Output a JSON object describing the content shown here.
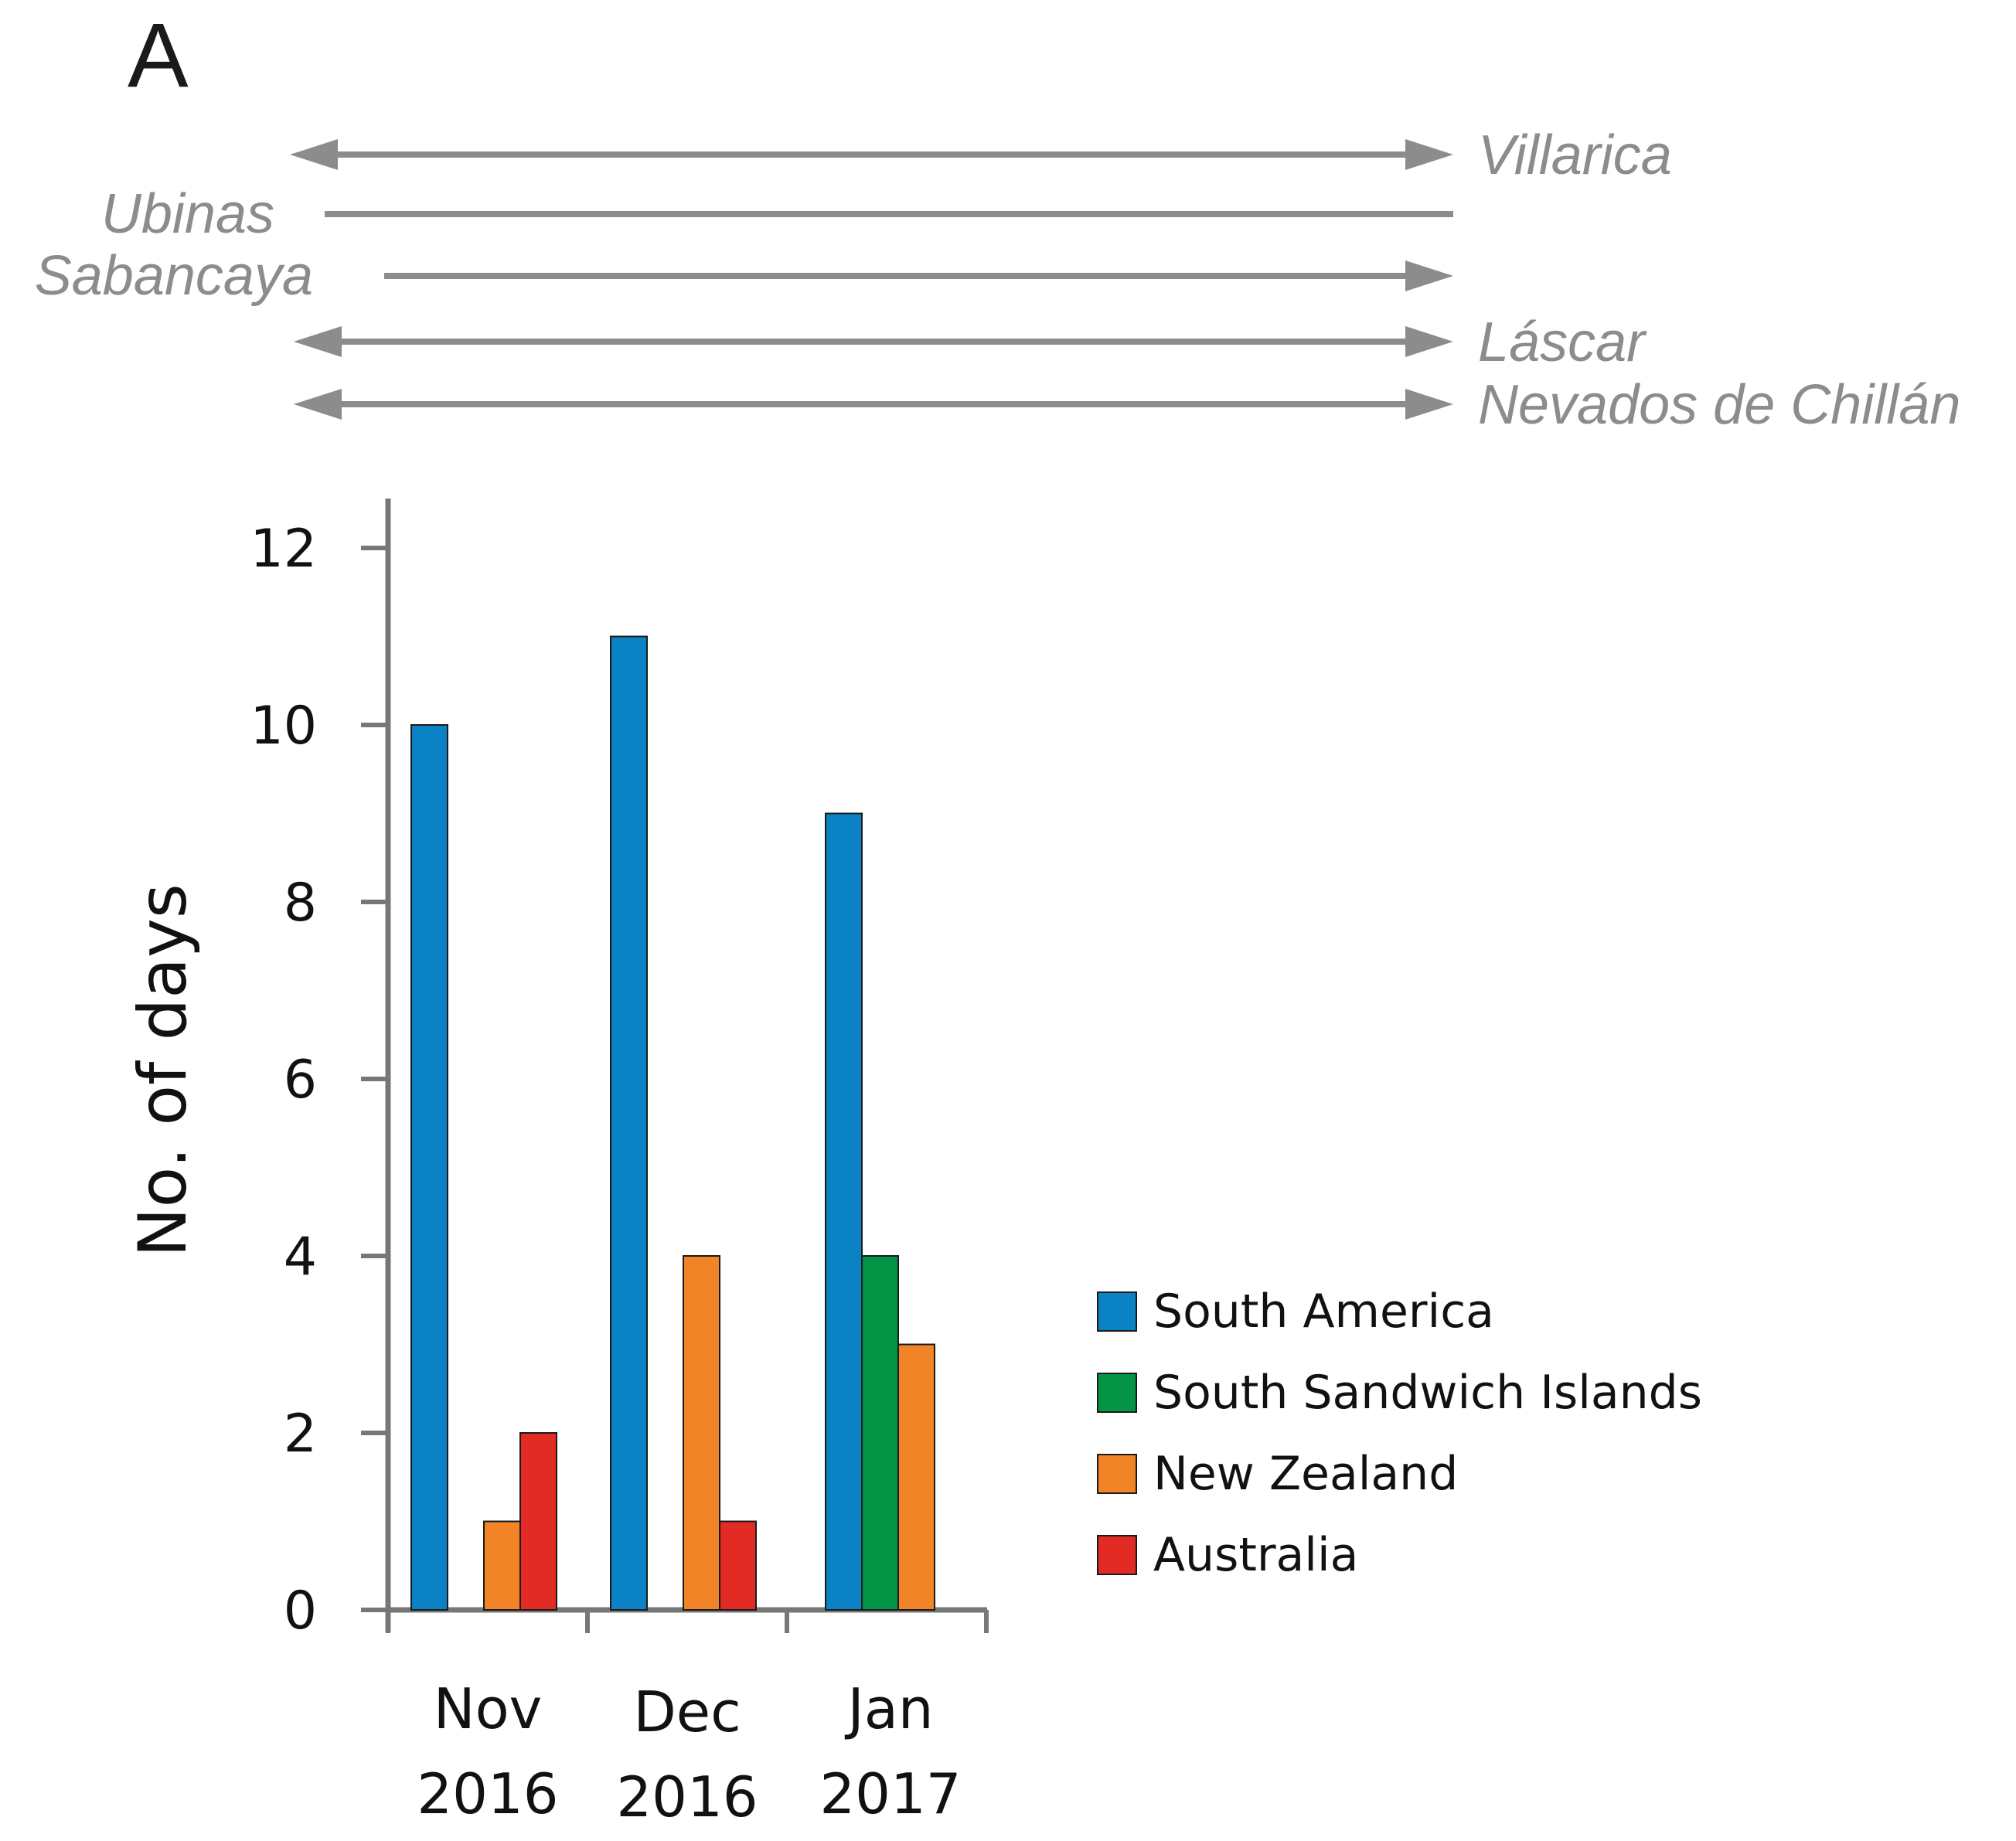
{
  "panel_label": "A",
  "volcano_timeline": {
    "color": "#8c8c8c",
    "rows": [
      {
        "name": "Villarica",
        "label_side": "right",
        "arrow_left": true,
        "arrow_right": true
      },
      {
        "name": "Ubinas",
        "label_side": "left",
        "arrow_left": false,
        "arrow_right": false
      },
      {
        "name": "Sabancaya",
        "label_side": "left",
        "arrow_left": false,
        "arrow_right": true
      },
      {
        "name": "Láscar",
        "label_side": "right",
        "arrow_left": true,
        "arrow_right": true
      },
      {
        "name": "Nevados de Chillán",
        "label_side": "right",
        "arrow_left": true,
        "arrow_right": true
      }
    ]
  },
  "chart_data": {
    "type": "bar",
    "ylabel": "No. of days",
    "xlabel": "",
    "ylim": [
      0,
      12.5
    ],
    "yticks": [
      "0",
      "2",
      "4",
      "6",
      "8",
      "10",
      "12"
    ],
    "grid": false,
    "legend_position": "right",
    "categories": [
      {
        "line1": "Nov",
        "line2": "2016"
      },
      {
        "line1": "Dec",
        "line2": "2016"
      },
      {
        "line1": "Jan",
        "line2": "2017"
      }
    ],
    "series": [
      {
        "name": "South America",
        "color": "#0a82c3",
        "values": [
          10,
          11,
          9
        ]
      },
      {
        "name": "South Sandwich Islands",
        "color": "#039545",
        "values": [
          0,
          0,
          4
        ]
      },
      {
        "name": "New Zealand",
        "color": "#f08427",
        "values": [
          1,
          4,
          3
        ]
      },
      {
        "name": "Australia",
        "color": "#e32b25",
        "values": [
          2,
          1,
          0
        ]
      }
    ]
  }
}
